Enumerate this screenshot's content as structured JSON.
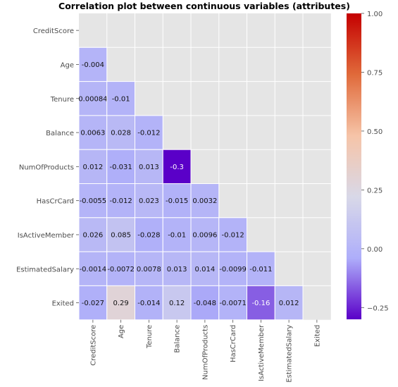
{
  "chart_data": {
    "type": "heatmap",
    "title": "Correlation plot between continuous variables (attributes)",
    "variables": [
      "CreditScore",
      "Age",
      "Tenure",
      "Balance",
      "NumOfProducts",
      "HasCrCard",
      "IsActiveMember",
      "EstimatedSalary",
      "Exited"
    ],
    "mask": "upper-triangle-including-diagonal",
    "cells": [
      {
        "row": "Age",
        "col": "CreditScore",
        "value": -0.004,
        "label": "-0.004"
      },
      {
        "row": "Tenure",
        "col": "CreditScore",
        "value": 0.00084,
        "label": "0.00084"
      },
      {
        "row": "Tenure",
        "col": "Age",
        "value": -0.01,
        "label": "-0.01"
      },
      {
        "row": "Balance",
        "col": "CreditScore",
        "value": 0.0063,
        "label": "0.0063"
      },
      {
        "row": "Balance",
        "col": "Age",
        "value": 0.028,
        "label": "0.028"
      },
      {
        "row": "Balance",
        "col": "Tenure",
        "value": -0.012,
        "label": "-0.012"
      },
      {
        "row": "NumOfProducts",
        "col": "CreditScore",
        "value": 0.012,
        "label": "0.012"
      },
      {
        "row": "NumOfProducts",
        "col": "Age",
        "value": -0.031,
        "label": "-0.031"
      },
      {
        "row": "NumOfProducts",
        "col": "Tenure",
        "value": 0.013,
        "label": "0.013"
      },
      {
        "row": "NumOfProducts",
        "col": "Balance",
        "value": -0.3,
        "label": "-0.3"
      },
      {
        "row": "HasCrCard",
        "col": "CreditScore",
        "value": -0.0055,
        "label": "-0.0055"
      },
      {
        "row": "HasCrCard",
        "col": "Age",
        "value": -0.012,
        "label": "-0.012"
      },
      {
        "row": "HasCrCard",
        "col": "Tenure",
        "value": 0.023,
        "label": "0.023"
      },
      {
        "row": "HasCrCard",
        "col": "Balance",
        "value": -0.015,
        "label": "-0.015"
      },
      {
        "row": "HasCrCard",
        "col": "NumOfProducts",
        "value": 0.0032,
        "label": "0.0032"
      },
      {
        "row": "IsActiveMember",
        "col": "CreditScore",
        "value": 0.026,
        "label": "0.026"
      },
      {
        "row": "IsActiveMember",
        "col": "Age",
        "value": 0.085,
        "label": "0.085"
      },
      {
        "row": "IsActiveMember",
        "col": "Tenure",
        "value": -0.028,
        "label": "-0.028"
      },
      {
        "row": "IsActiveMember",
        "col": "Balance",
        "value": -0.01,
        "label": "-0.01"
      },
      {
        "row": "IsActiveMember",
        "col": "NumOfProducts",
        "value": 0.0096,
        "label": "0.0096"
      },
      {
        "row": "IsActiveMember",
        "col": "HasCrCard",
        "value": -0.012,
        "label": "-0.012"
      },
      {
        "row": "EstimatedSalary",
        "col": "CreditScore",
        "value": -0.0014,
        "label": "-0.0014"
      },
      {
        "row": "EstimatedSalary",
        "col": "Age",
        "value": -0.0072,
        "label": "-0.0072"
      },
      {
        "row": "EstimatedSalary",
        "col": "Tenure",
        "value": 0.0078,
        "label": "0.0078"
      },
      {
        "row": "EstimatedSalary",
        "col": "Balance",
        "value": 0.013,
        "label": "0.013"
      },
      {
        "row": "EstimatedSalary",
        "col": "NumOfProducts",
        "value": 0.014,
        "label": "0.014"
      },
      {
        "row": "EstimatedSalary",
        "col": "HasCrCard",
        "value": -0.0099,
        "label": "-0.0099"
      },
      {
        "row": "EstimatedSalary",
        "col": "IsActiveMember",
        "value": -0.011,
        "label": "-0.011"
      },
      {
        "row": "Exited",
        "col": "CreditScore",
        "value": -0.027,
        "label": "-0.027"
      },
      {
        "row": "Exited",
        "col": "Age",
        "value": 0.29,
        "label": "0.29"
      },
      {
        "row": "Exited",
        "col": "Tenure",
        "value": -0.014,
        "label": "-0.014"
      },
      {
        "row": "Exited",
        "col": "Balance",
        "value": 0.12,
        "label": "0.12"
      },
      {
        "row": "Exited",
        "col": "NumOfProducts",
        "value": -0.048,
        "label": "-0.048"
      },
      {
        "row": "Exited",
        "col": "HasCrCard",
        "value": -0.0071,
        "label": "-0.0071"
      },
      {
        "row": "Exited",
        "col": "IsActiveMember",
        "value": -0.16,
        "label": "-0.16"
      },
      {
        "row": "Exited",
        "col": "EstimatedSalary",
        "value": 0.012,
        "label": "0.012"
      }
    ],
    "colorbar": {
      "range": [
        -0.3,
        1.0
      ],
      "ticks": [
        -0.25,
        0.0,
        0.25,
        0.5,
        0.75,
        1.0
      ],
      "tick_labels": [
        "−0.25",
        "0.00",
        "0.25",
        "0.50",
        "0.75",
        "1.00"
      ],
      "colors": [
        "#5a00c8",
        "#aeaefa",
        "#d8d8e8",
        "#f6c4a8",
        "#e06a3a",
        "#c40000"
      ]
    },
    "background_color": "#e5e5e5",
    "cell_separator_color": "#ffffff"
  }
}
